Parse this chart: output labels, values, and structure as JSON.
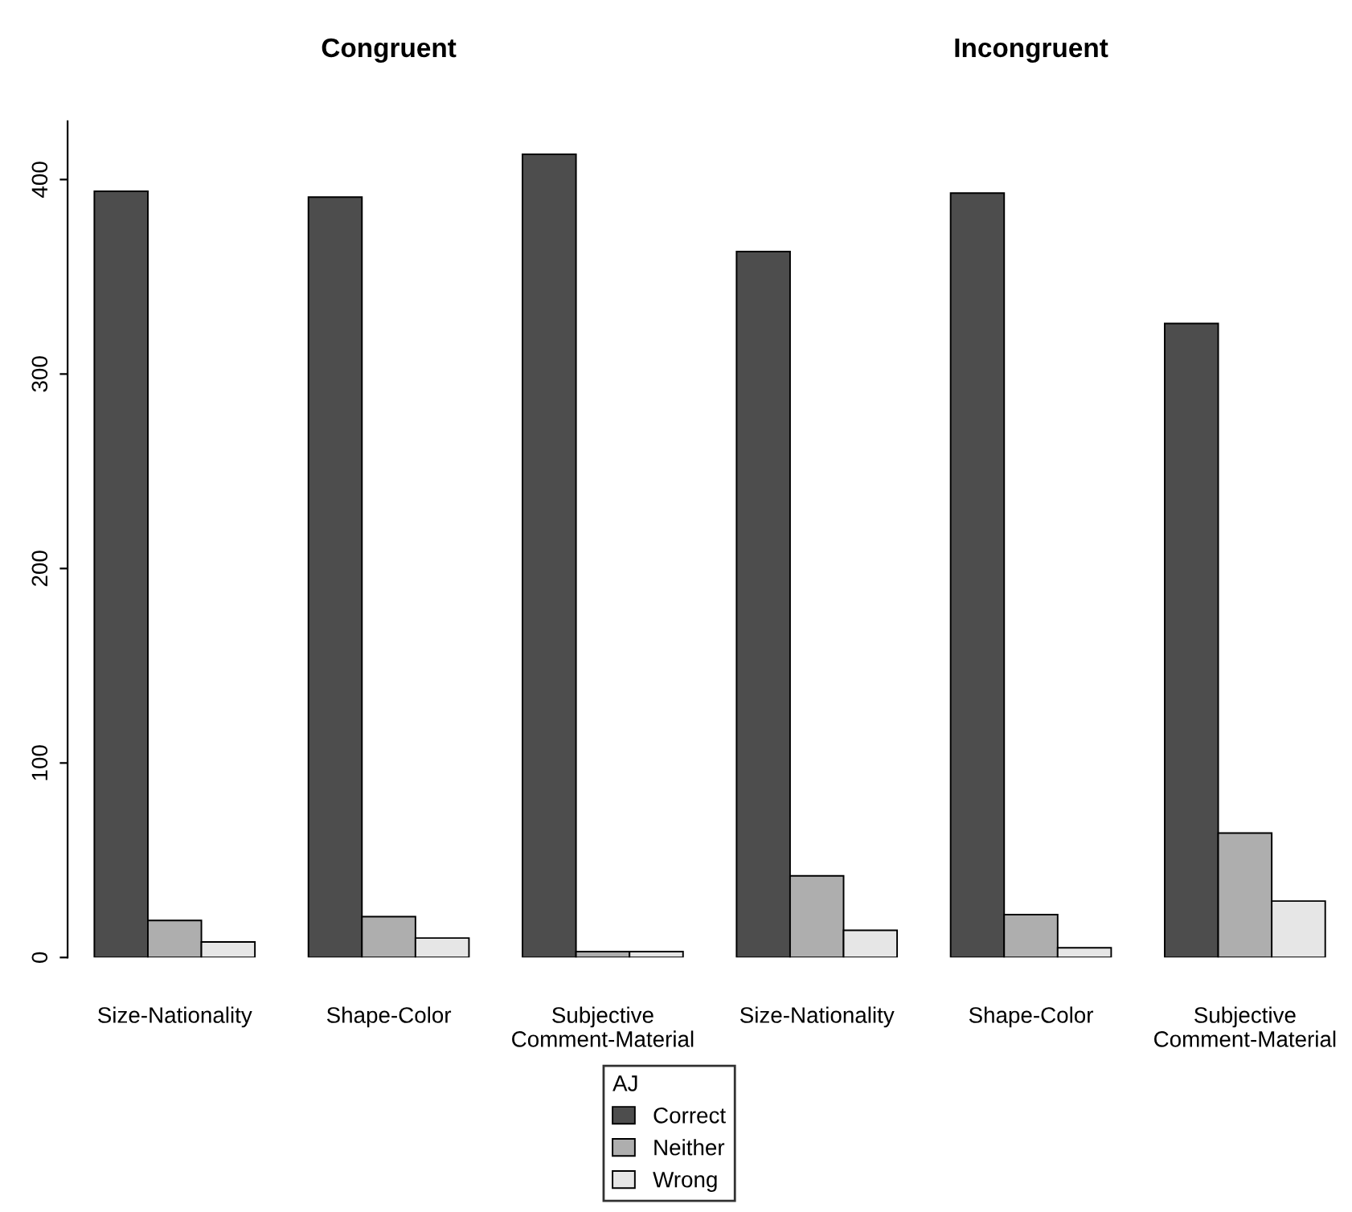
{
  "chart_data": {
    "type": "bar",
    "annotations": [
      "Congruent",
      "Incongruent"
    ],
    "categories": [
      "Size-Nationality",
      "Shape-Color",
      "Subjective\nComment-Material",
      "Size-Nationality",
      "Shape-Color",
      "Subjective\nComment-Material"
    ],
    "ylim": [
      0,
      430
    ],
    "yticks": [
      0,
      100,
      200,
      300,
      400
    ],
    "legend": "bottom",
    "legend_title": "AJ",
    "grid": false,
    "series": [
      {
        "name": "Correct",
        "color": "#4d4d4d",
        "values": [
          394,
          391,
          413,
          363,
          393,
          326
        ]
      },
      {
        "name": "Neither",
        "color": "#aeaeae",
        "values": [
          19,
          21,
          3,
          42,
          22,
          64
        ]
      },
      {
        "name": "Wrong",
        "color": "#e6e6e6",
        "values": [
          8,
          10,
          3,
          14,
          5,
          29
        ]
      }
    ]
  }
}
